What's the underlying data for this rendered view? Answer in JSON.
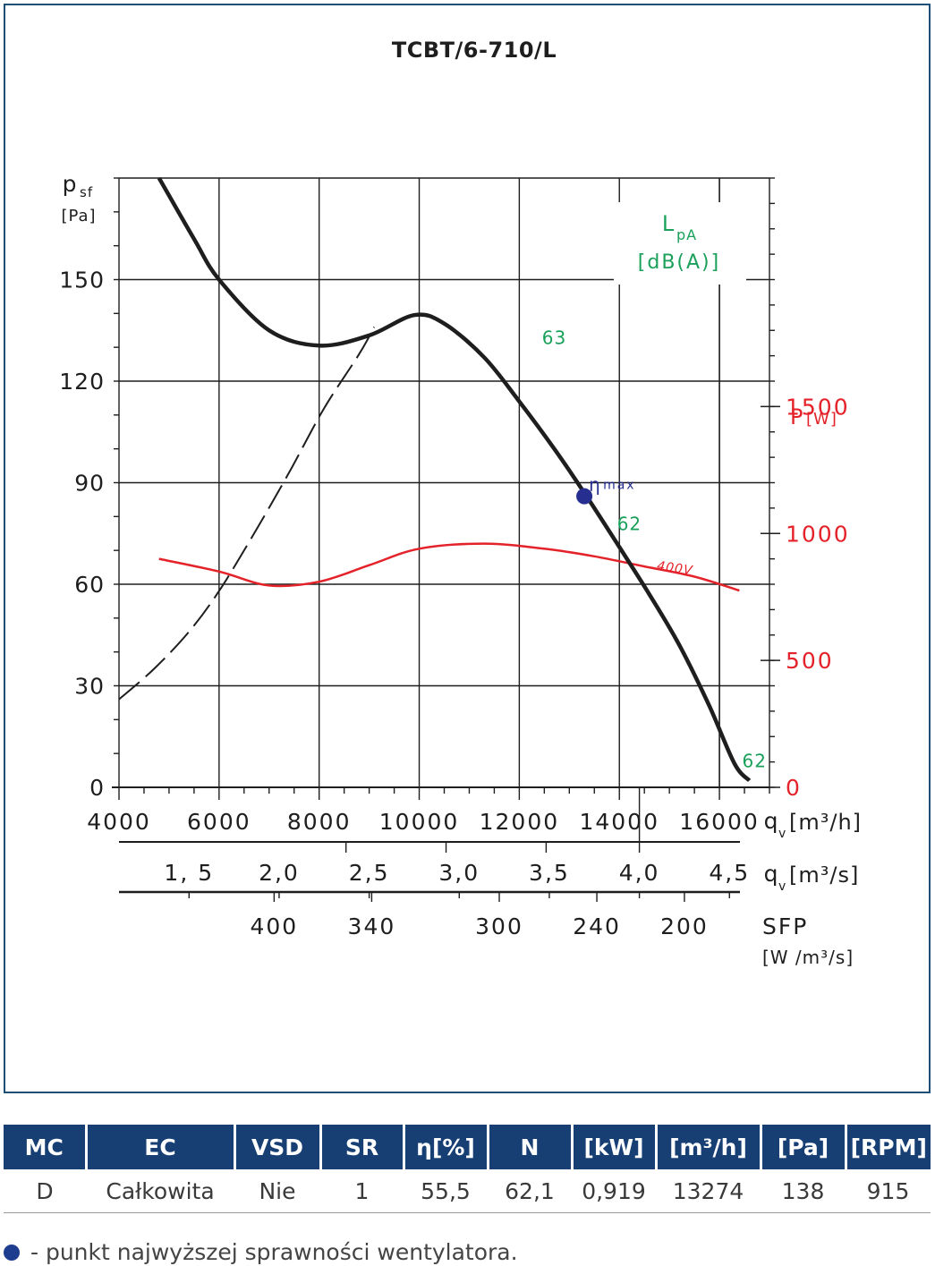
{
  "chart_data": {
    "type": "line",
    "title": "TCBT/6-710/L",
    "ylabel_main": "p",
    "ylabel_sub": "sf",
    "yunit": "[Pa]",
    "y_ticks": [
      "0",
      "30",
      "60",
      "90",
      "120",
      "150"
    ],
    "ylim": [
      0,
      180
    ],
    "x_m3h_ticks": [
      "4000",
      "6000",
      "8000",
      "10000",
      "12000",
      "14000",
      "16000"
    ],
    "xlim_m3h": [
      4000,
      17000
    ],
    "x_m3h_label_main": "q",
    "x_m3h_label_sub": "v",
    "x_m3h_unit": "[m³/h]",
    "x_m3s_ticks": [
      {
        "label": "1, 5",
        "q": 5400
      },
      {
        "label": "2,0",
        "q": 7200
      },
      {
        "label": "2,5",
        "q": 9000
      },
      {
        "label": "3,0",
        "q": 10800
      },
      {
        "label": "3,5",
        "q": 12600
      },
      {
        "label": "4,0",
        "q": 14400
      },
      {
        "label": "4,5",
        "q": 16200
      }
    ],
    "x_m3s_label_main": "q",
    "x_m3s_label_sub": "v",
    "x_m3s_unit": "[m³/s]",
    "sfp_ticks": [
      {
        "label": "400",
        "q": 7100
      },
      {
        "label": "340",
        "q": 9050
      },
      {
        "label": "300",
        "q": 11600
      },
      {
        "label": "240",
        "q": 13550
      },
      {
        "label": "200",
        "q": 15300
      }
    ],
    "sfp_label": "SFP",
    "sfp_unit": "[W /m³/s]",
    "power_label": "P",
    "power_unit": "[W]",
    "power_ticks": [
      "0",
      "500",
      "1000",
      "1500"
    ],
    "power_lim": [
      0,
      2400
    ],
    "lpa_label": "L",
    "lpa_sub": "pA",
    "lpa_unit": "[dB(A)]",
    "series": [
      {
        "key": "pressure",
        "type": "smooth",
        "color": "#1e1e1e",
        "points": [
          [
            4800,
            180
          ],
          [
            5500,
            162
          ],
          [
            6000,
            150
          ],
          [
            7000,
            135
          ],
          [
            8000,
            130.5
          ],
          [
            9000,
            133.5
          ],
          [
            9900,
            139.5
          ],
          [
            10500,
            137
          ],
          [
            11300,
            127
          ],
          [
            12000,
            114
          ],
          [
            12700,
            100
          ],
          [
            13300,
            87
          ],
          [
            14000,
            71
          ],
          [
            14600,
            57
          ],
          [
            15200,
            42
          ],
          [
            15800,
            24
          ],
          [
            16300,
            7
          ],
          [
            16600,
            2
          ]
        ]
      },
      {
        "key": "system-curve",
        "type": "dashed",
        "color": "#1e1e1e",
        "points": [
          [
            4000,
            26
          ],
          [
            4700,
            35
          ],
          [
            5400,
            46
          ],
          [
            6000,
            58
          ],
          [
            6700,
            75
          ],
          [
            7400,
            93
          ],
          [
            8100,
            112
          ],
          [
            8800,
            128
          ],
          [
            9100,
            136
          ]
        ]
      },
      {
        "name": "400V",
        "key": "power",
        "type": "smooth",
        "color": "#e4222a",
        "points": [
          [
            4800,
            900
          ],
          [
            6000,
            850
          ],
          [
            7000,
            795
          ],
          [
            8000,
            810
          ],
          [
            9000,
            875
          ],
          [
            10000,
            940
          ],
          [
            11300,
            960
          ],
          [
            12500,
            940
          ],
          [
            13500,
            910
          ],
          [
            14500,
            870
          ],
          [
            15500,
            830
          ],
          [
            16400,
            775
          ]
        ]
      }
    ],
    "lpa_labels": [
      {
        "text": "63",
        "q": 12700,
        "p": 131
      },
      {
        "text": "62",
        "q": 14200,
        "p": 76
      },
      {
        "text": "62",
        "q": 16700,
        "p": 6
      }
    ],
    "eta_max": {
      "q": 13300,
      "p": 86,
      "label": "η",
      "label_sub": "max"
    }
  },
  "table": {
    "headers": [
      "MC",
      "EC",
      "VSD",
      "SR",
      "η[%]",
      "N",
      "[kW]",
      "[m³/h]",
      "[Pa]",
      "[RPM]"
    ],
    "row": [
      "D",
      "Całkowita",
      "Nie",
      "1",
      "55,5",
      "62,1",
      "0,919",
      "13274",
      "138",
      "915"
    ]
  },
  "footnote": "- punkt najwyższej sprawności wentylatora.",
  "colors": {
    "accent": "#173f74",
    "power": "#e4222a",
    "lpa": "#1aa05a",
    "eta": "#262e8f"
  }
}
